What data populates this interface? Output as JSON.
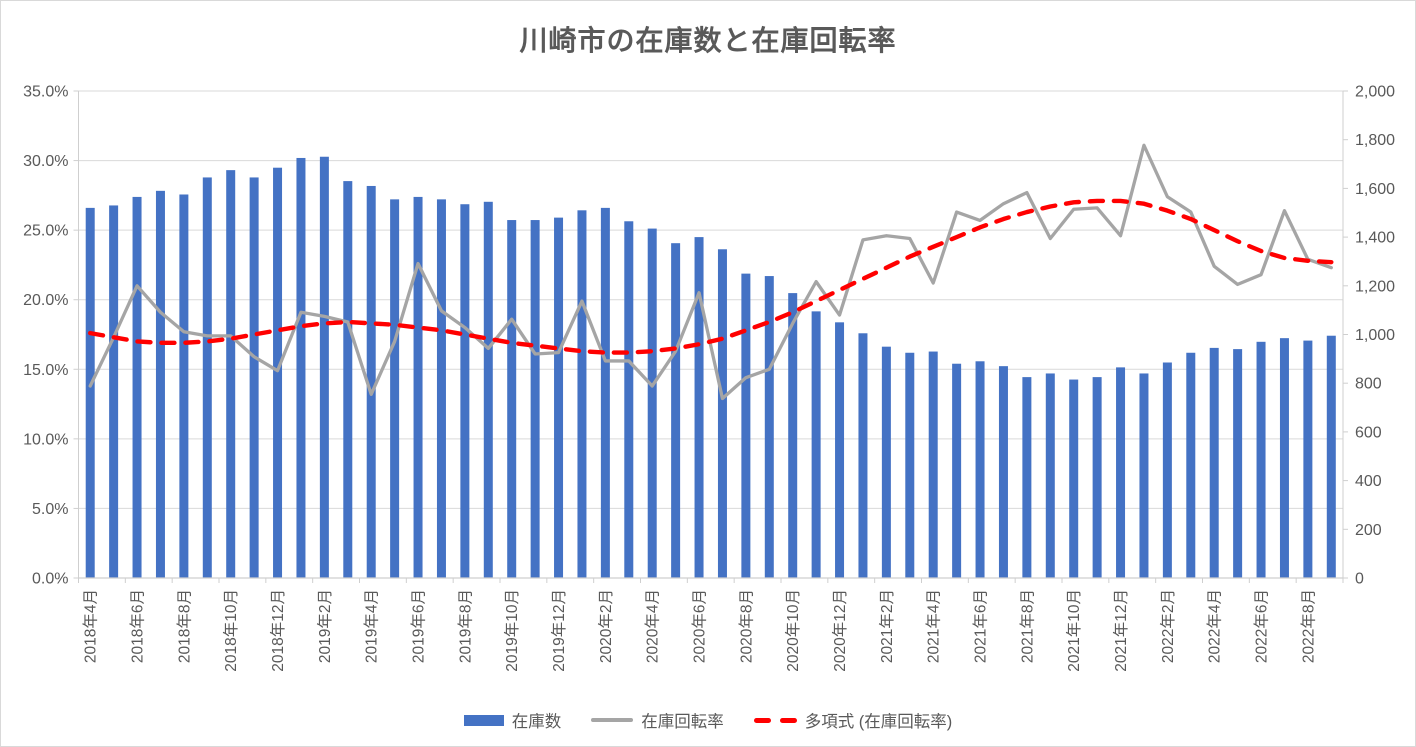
{
  "chart_title": "川崎市の在庫数と在庫回転率",
  "legend": {
    "items": [
      {
        "label": "在庫数",
        "swatch": "bar-swatch",
        "color": "#4472C4"
      },
      {
        "label": "在庫回転率",
        "swatch": "line-swatch",
        "color": "#A5A5A5"
      },
      {
        "label": "多項式 (在庫回転率)",
        "swatch": "dashed-line-swatch",
        "color": "#FF0000"
      }
    ]
  },
  "colors": {
    "bar": "#4472C4",
    "line": "#A5A5A5",
    "trendline": "#FF0000",
    "text": "#595959",
    "gridline": "#D9D9D9",
    "axis_line": "#CFCFCF",
    "background": "#FFFFFF"
  },
  "chart_data": {
    "type": "combo-bar-line",
    "title": "川崎市の在庫数と在庫回転率",
    "categories": [
      "2018年4月",
      "2018年5月",
      "2018年6月",
      "2018年7月",
      "2018年8月",
      "2018年9月",
      "2018年10月",
      "2018年11月",
      "2018年12月",
      "2019年1月",
      "2019年2月",
      "2019年3月",
      "2019年4月",
      "2019年5月",
      "2019年6月",
      "2019年7月",
      "2019年8月",
      "2019年9月",
      "2019年10月",
      "2019年11月",
      "2019年12月",
      "2020年1月",
      "2020年2月",
      "2020年3月",
      "2020年4月",
      "2020年5月",
      "2020年6月",
      "2020年7月",
      "2020年8月",
      "2020年9月",
      "2020年10月",
      "2020年11月",
      "2020年12月",
      "2021年1月",
      "2021年2月",
      "2021年3月",
      "2021年4月",
      "2021年5月",
      "2021年6月",
      "2021年7月",
      "2021年8月",
      "2021年9月",
      "2021年10月",
      "2021年11月",
      "2021年12月",
      "2022年1月",
      "2022年2月",
      "2022年3月",
      "2022年4月",
      "2022年5月",
      "2022年6月",
      "2022年7月",
      "2022年8月",
      "2022年9月"
    ],
    "x_axis": {
      "labels_shown_every": 2,
      "tick_label_rotation": -90
    },
    "series": [
      {
        "name": "在庫数",
        "chart_type": "bar",
        "axis": "right",
        "color": "#4472C4",
        "values": [
          1520,
          1530,
          1565,
          1590,
          1575,
          1645,
          1675,
          1645,
          1685,
          1725,
          1730,
          1630,
          1610,
          1555,
          1565,
          1555,
          1535,
          1545,
          1470,
          1470,
          1480,
          1510,
          1520,
          1465,
          1435,
          1375,
          1400,
          1350,
          1250,
          1240,
          1170,
          1095,
          1050,
          1005,
          950,
          925,
          930,
          880,
          890,
          870,
          825,
          840,
          815,
          825,
          865,
          840,
          885,
          925,
          945,
          940,
          970,
          985,
          975,
          995
        ]
      },
      {
        "name": "在庫回転率",
        "chart_type": "line",
        "axis": "left",
        "color": "#A5A5A5",
        "unit": "%",
        "values": [
          13.8,
          17.3,
          21.0,
          19.1,
          17.7,
          17.4,
          17.4,
          15.9,
          14.9,
          19.1,
          18.8,
          18.4,
          13.2,
          17.0,
          22.6,
          19.2,
          18.0,
          16.5,
          18.6,
          16.1,
          16.2,
          19.9,
          15.6,
          15.6,
          13.8,
          16.3,
          20.5,
          12.9,
          14.4,
          15.0,
          18.3,
          21.3,
          18.9,
          24.3,
          24.6,
          24.4,
          21.2,
          26.3,
          25.7,
          26.9,
          27.7,
          24.4,
          26.5,
          26.6,
          24.6,
          31.1,
          27.4,
          26.3,
          22.4,
          21.1,
          21.8,
          26.4,
          22.9,
          22.3
        ]
      },
      {
        "name": "多項式 (在庫回転率)",
        "chart_type": "dashed-line",
        "axis": "left",
        "color": "#FF0000",
        "unit": "%",
        "values": [
          17.6,
          17.3,
          17.0,
          16.9,
          16.9,
          17.0,
          17.2,
          17.5,
          17.8,
          18.1,
          18.3,
          18.4,
          18.3,
          18.2,
          18.0,
          17.8,
          17.5,
          17.2,
          16.9,
          16.7,
          16.5,
          16.3,
          16.2,
          16.2,
          16.3,
          16.5,
          16.8,
          17.2,
          17.8,
          18.4,
          19.1,
          19.9,
          20.7,
          21.5,
          22.3,
          23.1,
          23.8,
          24.5,
          25.2,
          25.8,
          26.3,
          26.7,
          27.0,
          27.1,
          27.1,
          26.9,
          26.4,
          25.8,
          25.0,
          24.2,
          23.5,
          23.0,
          22.8,
          22.7
        ]
      }
    ],
    "left_axis": {
      "min": 0,
      "max": 35,
      "step": 5,
      "format": "percent",
      "labels": [
        "35.0%",
        "30.0%",
        "25.0%",
        "20.0%",
        "15.0%",
        "10.0%",
        "5.0%",
        "0.0%"
      ]
    },
    "right_axis": {
      "min": 0,
      "max": 2000,
      "step": 200,
      "labels": [
        "2,000",
        "1,800",
        "1,600",
        "1,400",
        "1,200",
        "1,000",
        "800",
        "600",
        "400",
        "200",
        "0"
      ]
    },
    "grid": true,
    "legend_position": "bottom"
  }
}
